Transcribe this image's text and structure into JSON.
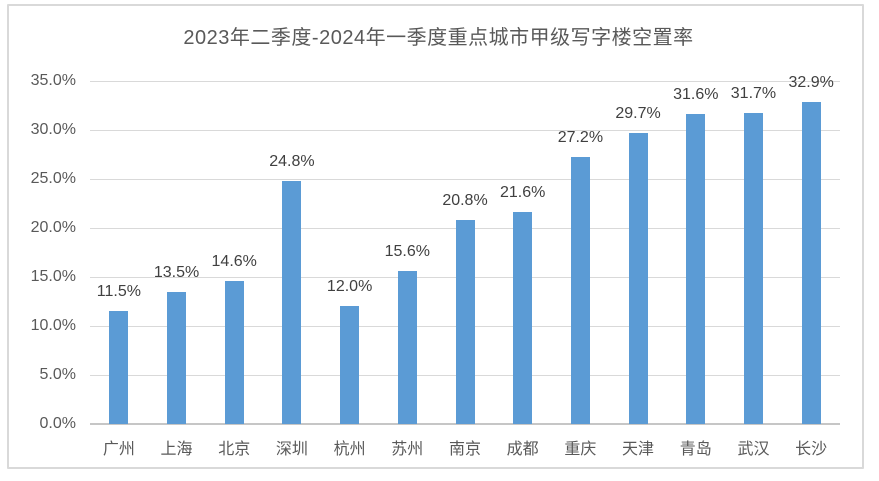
{
  "chart_data": {
    "type": "bar",
    "title": "2023年二季度-2024年一季度重点城市甲级写字楼空置率",
    "categories": [
      "广州",
      "上海",
      "北京",
      "深圳",
      "杭州",
      "苏州",
      "南京",
      "成都",
      "重庆",
      "天津",
      "青岛",
      "武汉",
      "长沙"
    ],
    "values": [
      11.5,
      13.5,
      14.6,
      24.8,
      12.0,
      15.6,
      20.8,
      21.6,
      27.2,
      29.7,
      31.6,
      31.7,
      32.9
    ],
    "data_labels": [
      "11.5%",
      "13.5%",
      "14.6%",
      "24.8%",
      "12.0%",
      "15.6%",
      "20.8%",
      "21.6%",
      "27.2%",
      "29.7%",
      "31.6%",
      "31.7%",
      "32.9%"
    ],
    "xlabel": "",
    "ylabel": "",
    "ylim": [
      0,
      35
    ],
    "ytick_step": 5,
    "ytick_labels": [
      "0.0%",
      "5.0%",
      "10.0%",
      "15.0%",
      "20.0%",
      "25.0%",
      "30.0%",
      "35.0%"
    ],
    "grid": true,
    "legend_position": "none"
  },
  "colors": {
    "bar": "#5B9BD5",
    "gridline": "#D9D9D9",
    "axis_line": "#C6C6C6",
    "title_text": "#595959",
    "axis_text": "#595959",
    "data_label_text": "#404040",
    "chart_border": "#D9D9D9",
    "background": "#FFFFFF"
  }
}
